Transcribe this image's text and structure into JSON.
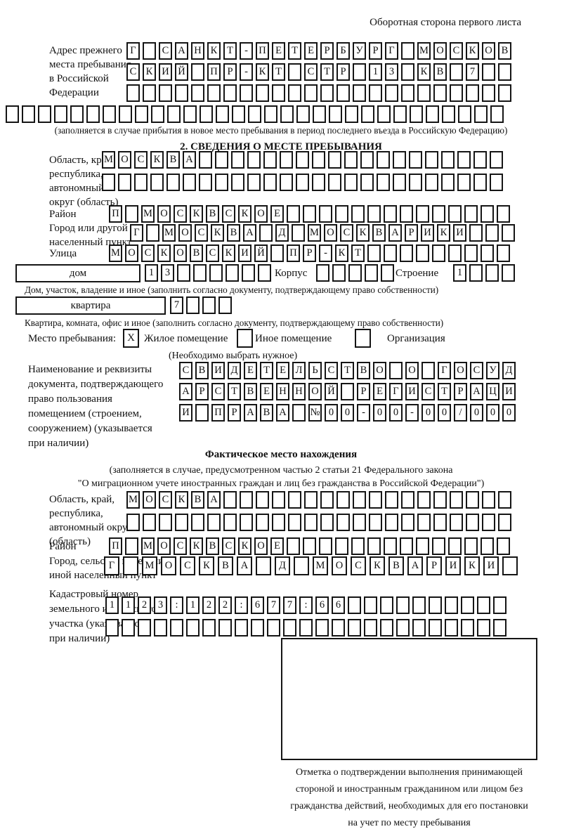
{
  "page": {
    "corner_note": "Оборотная сторона первого листа"
  },
  "prev_address": {
    "label_lines": [
      "Адрес прежнего",
      "места пребывания",
      "в Российской",
      "Федерации"
    ],
    "row1": {
      "t": "Г_САНКТ-ПЕТЕРБУРГ_МОСКОВ",
      "n": 24
    },
    "row2": {
      "t": "СКИЙ_ПР-КТ_СТР_13_КВ_7",
      "n": 24
    },
    "row3": {
      "t": "",
      "n": 24
    },
    "row4": {
      "t": "",
      "n": 31
    },
    "note": "(заполняется в случае прибытия в новое место пребывания в период последнего въезда в Российскую Федерацию)"
  },
  "section2": {
    "title": "2. СВЕДЕНИЯ О МЕСТЕ ПРЕБЫВАНИЯ",
    "region": {
      "label_lines": [
        "Область, край,",
        "республика,",
        "автономный",
        "округ (область)"
      ],
      "row1": {
        "t": "МОСКВА",
        "n": 25
      },
      "row2": {
        "t": "",
        "n": 25
      }
    },
    "district": {
      "label": "Район",
      "row": {
        "t": "П_МОСКВСКОЕ",
        "n": 25
      }
    },
    "city": {
      "label_lines": [
        "Город или другой",
        "населенный пункт"
      ],
      "row": {
        "t": "Г_МОСКВА_Д_МОСКВАРИКИ",
        "n": 24
      }
    },
    "street": {
      "label": "Улица",
      "row": {
        "t": "МОСКОВСКИЙ_ПР-КТ",
        "n": 25
      }
    },
    "house": {
      "box_label": "дом",
      "cells": {
        "t": "13",
        "n": 8
      },
      "korpus_label": "Корпус",
      "korpus_cells": {
        "t": "",
        "n": 5
      },
      "stroenie_label": "Строение",
      "stroenie_cells": {
        "t": "1",
        "n": 4
      },
      "note": "Дом, участок, владение и иное (заполнить согласно документу, подтверждающему право собственности)"
    },
    "apartment": {
      "box_label": "квартира",
      "cells": {
        "t": "7",
        "n": 4
      },
      "note": "Квартира, комната, офис и иное (заполнить согласно документу, подтверждающему право собственности)"
    },
    "stay": {
      "label": "Место пребывания:",
      "opt1": {
        "mark": "X",
        "label": "Жилое помещение"
      },
      "opt2": {
        "mark": "",
        "label": "Иное помещение"
      },
      "opt3": {
        "mark": "",
        "label": "Организация"
      },
      "note": "(Необходимо выбрать нужное)"
    },
    "document": {
      "label_lines": [
        "Наименование и реквизиты",
        "документа, подтверждающего",
        "право пользования",
        "помещением (строением,",
        "сооружением) (указывается",
        "при наличии)"
      ],
      "row1": {
        "t": "СВИДЕТЕЛЬСТВО_О_ГОСУД",
        "n": 21
      },
      "row2": {
        "t": "АРСТВЕННОЙ_РЕГИСТРАЦИ",
        "n": 21
      },
      "row3": {
        "t": "И_ПРАВА_№00-00-00/000",
        "n": 21
      }
    }
  },
  "actual": {
    "title": "Фактическое место нахождения",
    "note_lines": [
      "(заполняется в случае, предусмотренном частью 2 статьи 21 Федерального закона",
      "\"О миграционном учете иностранных граждан и лиц без гражданства в Российской Федерации\")"
    ],
    "region": {
      "label_lines": [
        "Область, край,",
        "республика,",
        "автономный округ",
        "(область)"
      ],
      "row1": {
        "t": "МОСКВА",
        "n": 24
      },
      "row2": {
        "t": "",
        "n": 24
      }
    },
    "district": {
      "label": "Район",
      "row": {
        "t": "П_МОСКВСКОЕ",
        "n": 25
      }
    },
    "city": {
      "label_lines": [
        "Город, сельское поселение,",
        "иной населенный пункт"
      ],
      "row": {
        "t": "Г_МОСКВА_Д_МОСКВАРИКИ",
        "n": 22
      }
    },
    "cadastral": {
      "label_lines": [
        "Кадастровый номер",
        "земельного или лесного",
        "участка (указывается",
        "при наличии)"
      ],
      "row1": {
        "t": "1123:122:677:66",
        "n": 25
      },
      "row2": {
        "t": "",
        "n": 25
      }
    },
    "stamp_caption_lines": [
      "Отметка о подтверждении выполнения принимающей",
      "стороной и иностранным гражданином или лицом без",
      "гражданства действий, необходимых для его постановки",
      "на учет по месту пребывания"
    ]
  }
}
